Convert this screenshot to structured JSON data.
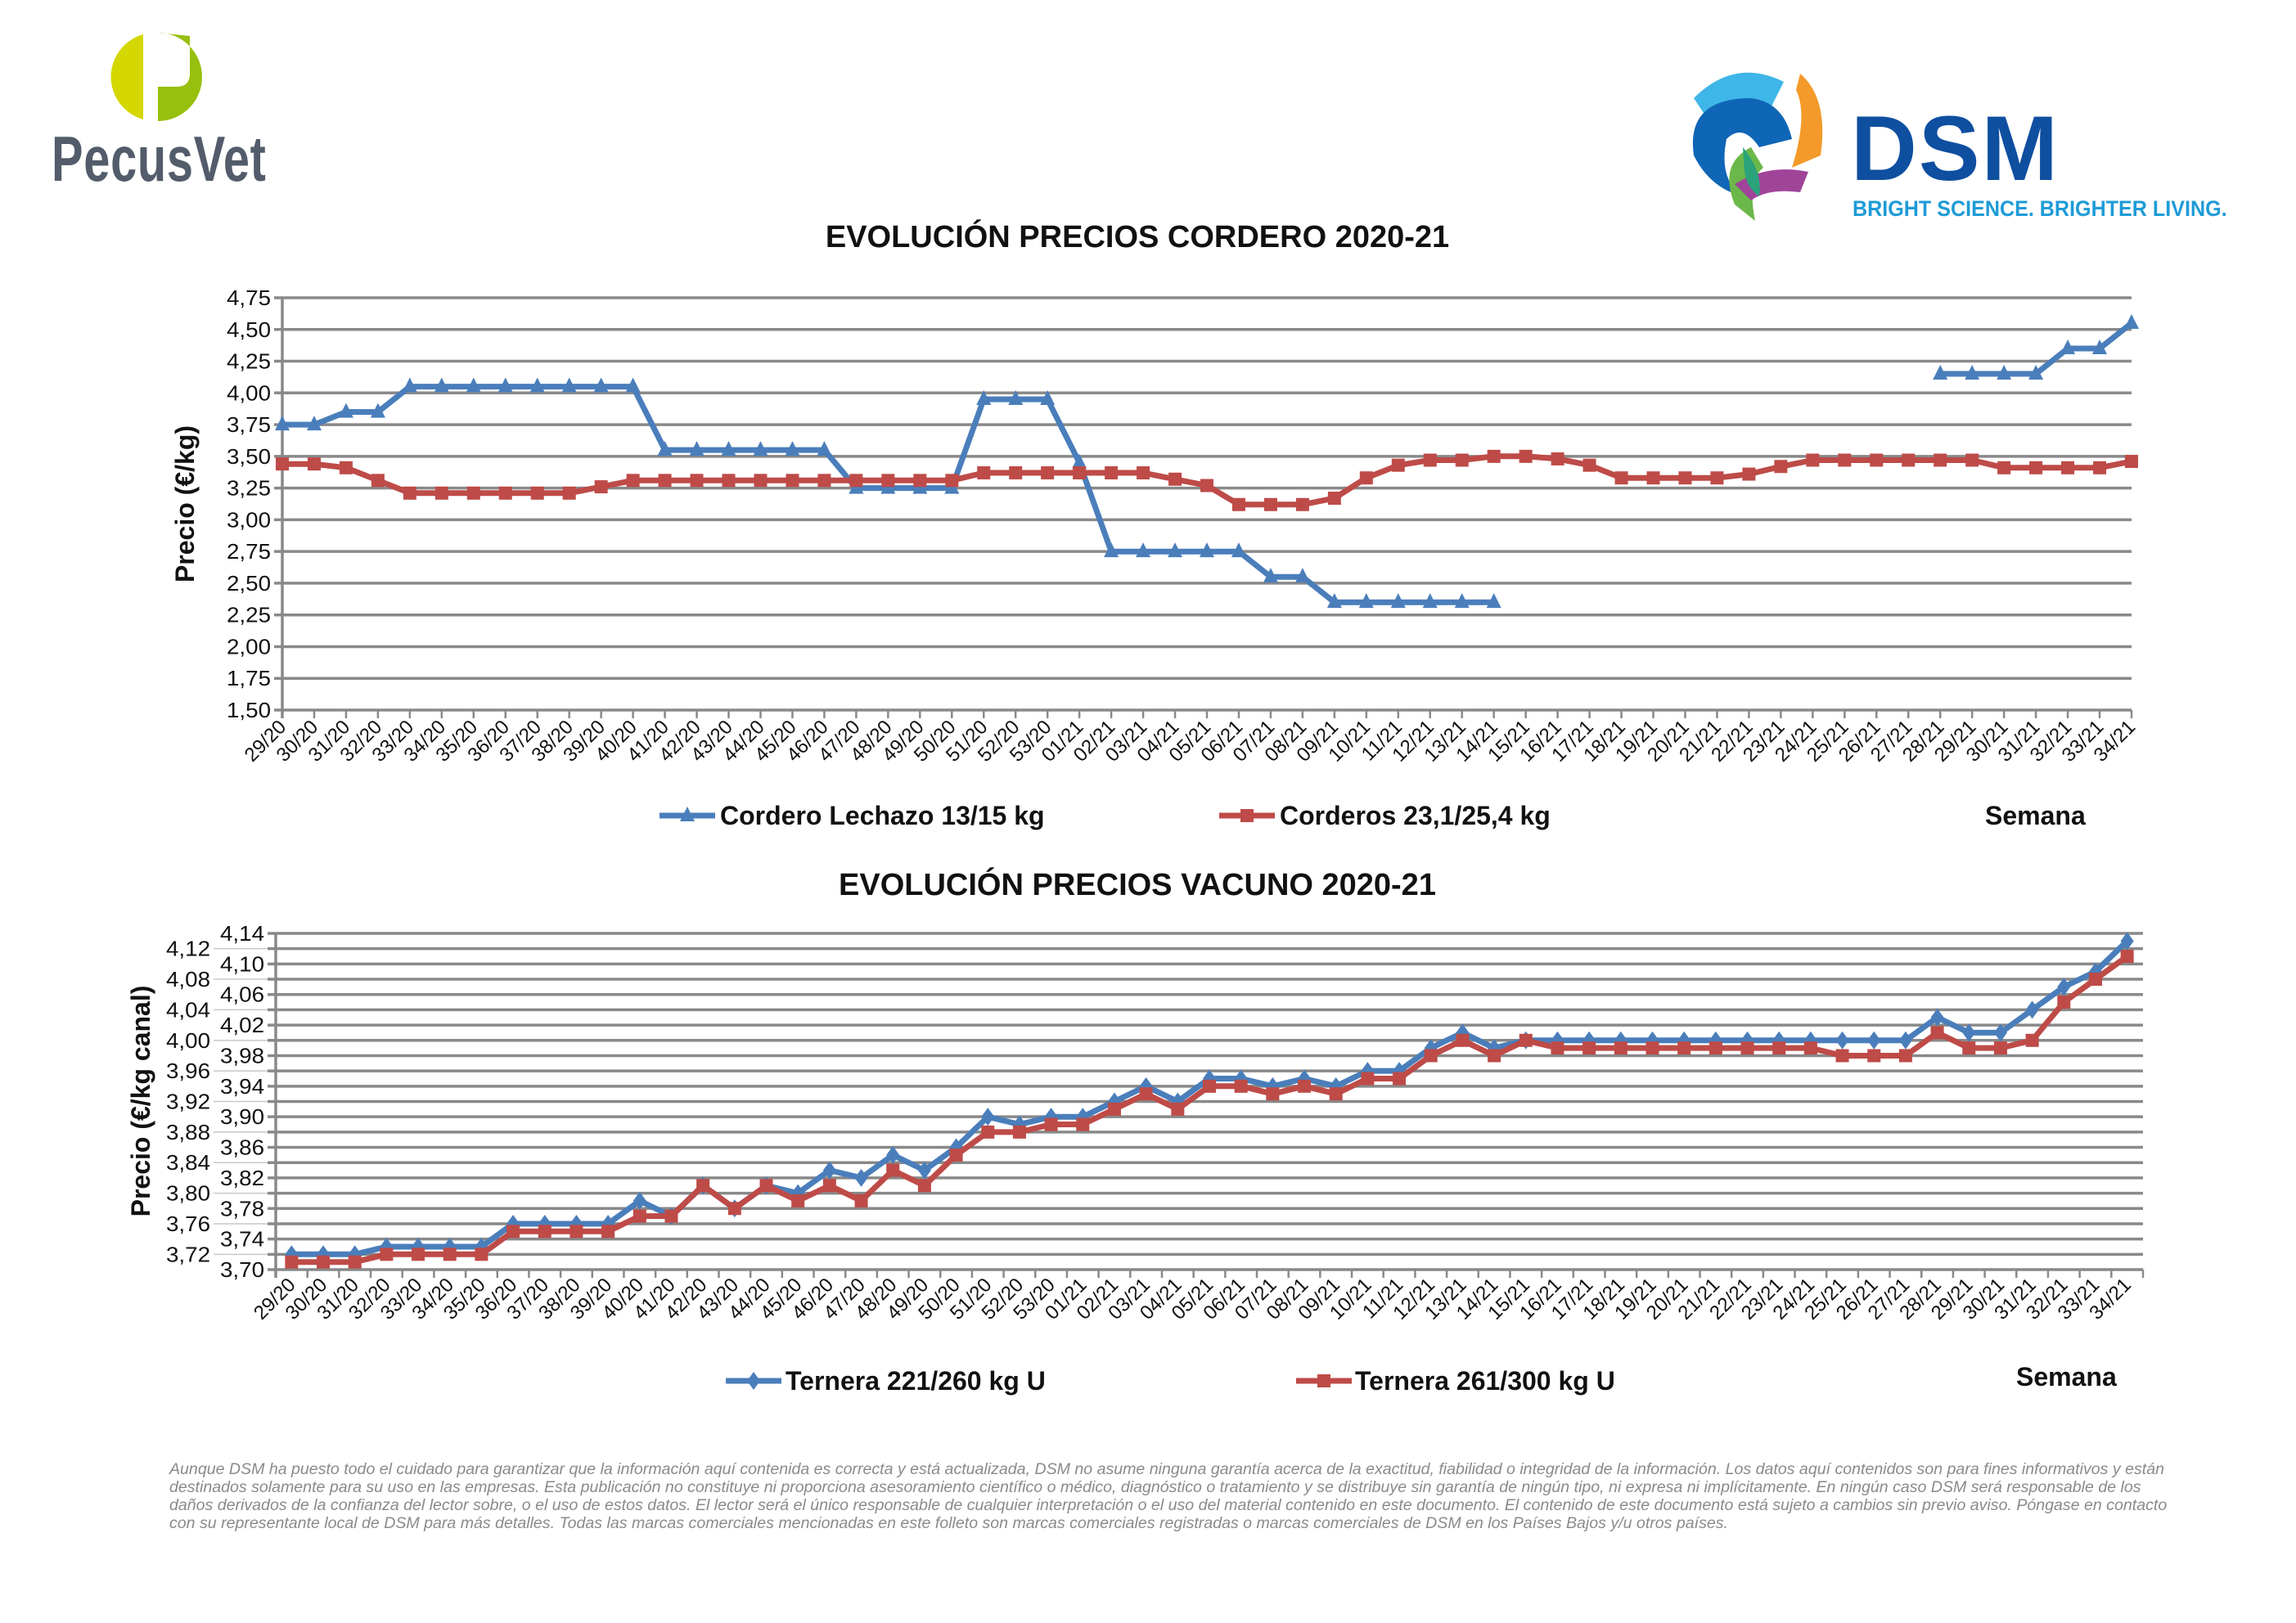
{
  "logos": {
    "left": {
      "name": "PecusVet",
      "colors": {
        "light": "#d4d700",
        "dark": "#97bf0d",
        "text": "#525c6a"
      }
    },
    "right": {
      "name": "DSM",
      "tagline": "BRIGHT SCIENCE. BRIGHTER LIVING.",
      "color": "#0f4fa0",
      "tagline_color": "#1e9bd7"
    }
  },
  "colors": {
    "blue": "#4a7ebb",
    "red": "#be4b48",
    "grid": "#898989"
  },
  "chart_data": [
    {
      "type": "line",
      "title": "EVOLUCIÓN PRECIOS CORDERO 2020-21",
      "xlabel": "Semana",
      "ylabel": "Precio (€/kg)",
      "ylim": [
        1.5,
        4.75
      ],
      "ystep": 0.25,
      "yticks": [
        "1,50",
        "1,75",
        "2,00",
        "2,25",
        "2,50",
        "2,75",
        "3,00",
        "3,25",
        "3,50",
        "3,75",
        "4,00",
        "4,25",
        "4,50",
        "4,75"
      ],
      "grid": true,
      "legend": "bottom",
      "categories": [
        "29/20",
        "30/20",
        "31/20",
        "32/20",
        "33/20",
        "34/20",
        "35/20",
        "36/20",
        "37/20",
        "38/20",
        "39/20",
        "40/20",
        "41/20",
        "42/20",
        "43/20",
        "44/20",
        "45/20",
        "46/20",
        "47/20",
        "48/20",
        "49/20",
        "50/20",
        "51/20",
        "52/20",
        "53/20",
        "01/21",
        "02/21",
        "03/21",
        "04/21",
        "05/21",
        "06/21",
        "07/21",
        "08/21",
        "09/21",
        "10/21",
        "11/21",
        "12/21",
        "13/21",
        "14/21",
        "15/21",
        "16/21",
        "17/21",
        "18/21",
        "19/21",
        "20/21",
        "21/21",
        "22/21",
        "23/21",
        "24/21",
        "25/21",
        "26/21",
        "27/21",
        "28/21",
        "29/21",
        "30/21",
        "31/21",
        "32/21",
        "33/21",
        "34/21"
      ],
      "series": [
        {
          "name": "Cordero Lechazo 13/15 kg",
          "marker": "triangle",
          "color": "#4a7ebb",
          "values": [
            3.75,
            3.75,
            3.85,
            3.85,
            4.05,
            4.05,
            4.05,
            4.05,
            4.05,
            4.05,
            4.05,
            4.05,
            3.55,
            3.55,
            3.55,
            3.55,
            3.55,
            3.55,
            3.25,
            3.25,
            3.25,
            3.25,
            3.95,
            3.95,
            3.95,
            3.45,
            2.75,
            2.75,
            2.75,
            2.75,
            2.75,
            2.55,
            2.55,
            2.35,
            2.35,
            2.35,
            2.35,
            2.35,
            2.35,
            null,
            null,
            null,
            null,
            null,
            null,
            null,
            null,
            null,
            null,
            null,
            null,
            null,
            4.15,
            4.15,
            4.15,
            4.15,
            4.35,
            4.35,
            4.55
          ]
        },
        {
          "name": "Corderos 23,1/25,4 kg",
          "marker": "square",
          "color": "#be4b48",
          "values": [
            3.44,
            3.44,
            3.41,
            3.31,
            3.21,
            3.21,
            3.21,
            3.21,
            3.21,
            3.21,
            3.26,
            3.31,
            3.31,
            3.31,
            3.31,
            3.31,
            3.31,
            3.31,
            3.31,
            3.31,
            3.31,
            3.31,
            3.37,
            3.37,
            3.37,
            3.37,
            3.37,
            3.37,
            3.32,
            3.27,
            3.12,
            3.12,
            3.12,
            3.17,
            3.33,
            3.43,
            3.47,
            3.47,
            3.5,
            3.5,
            3.48,
            3.43,
            3.33,
            3.33,
            3.33,
            3.33,
            3.36,
            3.42,
            3.47,
            3.47,
            3.47,
            3.47,
            3.47,
            3.47,
            3.41,
            3.41,
            3.41,
            3.41,
            3.46
          ]
        }
      ]
    },
    {
      "type": "line",
      "title": "EVOLUCIÓN PRECIOS VACUNO 2020-21",
      "xlabel": "Semana",
      "ylabel": "Precio (€/kg canal)",
      "ylim": [
        3.7,
        4.14
      ],
      "ystep": 0.02,
      "yticks": [
        "3,70",
        "3,72",
        "3,74",
        "3,76",
        "3,78",
        "3,80",
        "3,82",
        "3,84",
        "3,86",
        "3,88",
        "3,90",
        "3,92",
        "3,94",
        "3,96",
        "3,98",
        "4,00",
        "4,02",
        "4,04",
        "4,06",
        "4,08",
        "4,10",
        "4,12",
        "4,14"
      ],
      "grid": true,
      "legend": "bottom",
      "categories": [
        "29/20",
        "30/20",
        "31/20",
        "32/20",
        "33/20",
        "34/20",
        "35/20",
        "36/20",
        "37/20",
        "38/20",
        "39/20",
        "40/20",
        "41/20",
        "42/20",
        "43/20",
        "44/20",
        "45/20",
        "46/20",
        "47/20",
        "48/20",
        "49/20",
        "50/20",
        "51/20",
        "52/20",
        "53/20",
        "01/21",
        "02/21",
        "03/21",
        "04/21",
        "05/21",
        "06/21",
        "07/21",
        "08/21",
        "09/21",
        "10/21",
        "11/21",
        "12/21",
        "13/21",
        "14/21",
        "15/21",
        "16/21",
        "17/21",
        "18/21",
        "19/21",
        "20/21",
        "21/21",
        "22/21",
        "23/21",
        "24/21",
        "25/21",
        "26/21",
        "27/21",
        "28/21",
        "29/21",
        "30/21",
        "31/21",
        "32/21",
        "33/21",
        "34/21"
      ],
      "series": [
        {
          "name": "Ternera 221/260 kg U",
          "marker": "diamond",
          "color": "#4a7ebb",
          "values": [
            3.72,
            3.72,
            3.72,
            3.73,
            3.73,
            3.73,
            3.73,
            3.76,
            3.76,
            3.76,
            3.76,
            3.79,
            3.77,
            3.81,
            3.78,
            3.81,
            3.8,
            3.83,
            3.82,
            3.85,
            3.83,
            3.86,
            3.9,
            3.89,
            3.9,
            3.9,
            3.92,
            3.94,
            3.92,
            3.95,
            3.95,
            3.94,
            3.95,
            3.94,
            3.96,
            3.96,
            3.99,
            4.01,
            3.99,
            4.0,
            4.0,
            4.0,
            4.0,
            4.0,
            4.0,
            4.0,
            4.0,
            4.0,
            4.0,
            4.0,
            4.0,
            4.0,
            4.03,
            4.01,
            4.01,
            4.04,
            4.07,
            4.09,
            4.13
          ]
        },
        {
          "name": "Ternera 261/300 kg U",
          "marker": "square",
          "color": "#be4b48",
          "values": [
            3.71,
            3.71,
            3.71,
            3.72,
            3.72,
            3.72,
            3.72,
            3.75,
            3.75,
            3.75,
            3.75,
            3.77,
            3.77,
            3.81,
            3.78,
            3.81,
            3.79,
            3.81,
            3.79,
            3.83,
            3.81,
            3.85,
            3.88,
            3.88,
            3.89,
            3.89,
            3.91,
            3.93,
            3.91,
            3.94,
            3.94,
            3.93,
            3.94,
            3.93,
            3.95,
            3.95,
            3.98,
            4.0,
            3.98,
            4.0,
            3.99,
            3.99,
            3.99,
            3.99,
            3.99,
            3.99,
            3.99,
            3.99,
            3.99,
            3.98,
            3.98,
            3.98,
            4.01,
            3.99,
            3.99,
            4.0,
            4.05,
            4.08,
            4.11
          ]
        }
      ]
    }
  ],
  "footer": {
    "lines": [
      "Aunque DSM ha puesto todo el cuidado para garantizar que la información aquí contenida es correcta y está actualizada, DSM no asume ninguna garantía acerca de la exactitud, fiabilidad o integridad de la información. Los datos aquí contenidos son para fines informativos y están",
      "destinados solamente para su uso en las empresas. Esta publicación no constituye ni proporciona asesoramiento científico o médico, diagnóstico o tratamiento y se distribuye sin garantía de ningún tipo, ni expresa ni implícitamente. En ningún caso DSM será responsable de los",
      "daños derivados de la confianza del lector sobre, o el uso de estos datos. El lector será el único responsable de cualquier interpretación o el uso del material contenido en este documento. El contenido de este documento está sujeto a cambios sin previo aviso. Póngase en contacto",
      "con su representante local de DSM para más detalles. Todas las marcas comerciales mencionadas en este folleto son marcas comerciales registradas o marcas comerciales de DSM en los Países Bajos y/u otros países."
    ]
  }
}
